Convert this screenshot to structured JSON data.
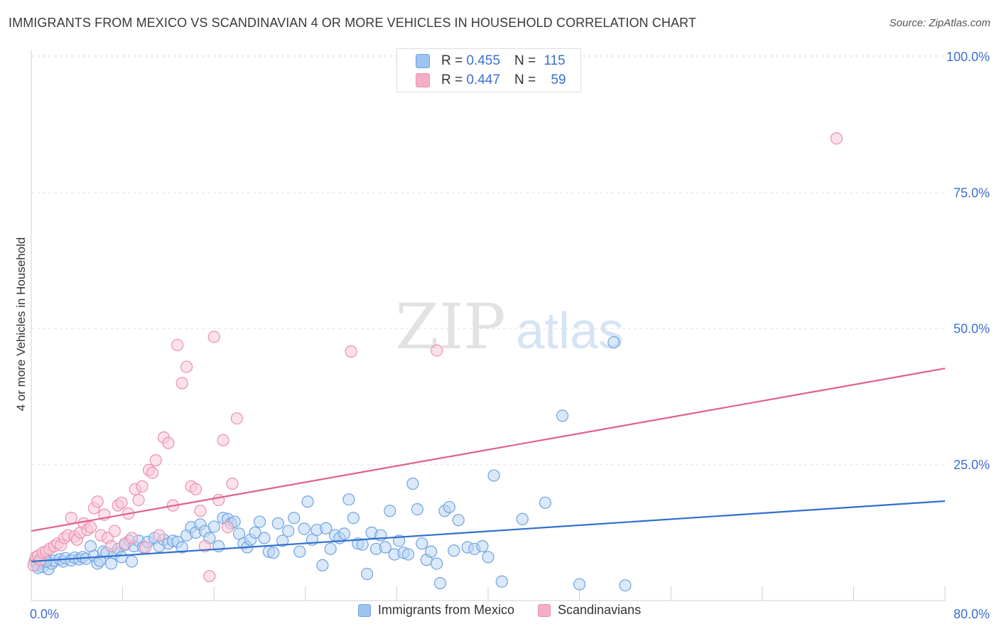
{
  "title": "IMMIGRANTS FROM MEXICO VS SCANDINAVIAN 4 OR MORE VEHICLES IN HOUSEHOLD CORRELATION CHART",
  "source": {
    "label": "Source:",
    "value": "ZipAtlas.com"
  },
  "watermark": {
    "zip": "ZIP",
    "atlas": "atlas"
  },
  "stats": [
    {
      "r_label": "R =",
      "r_value": "0.455",
      "n_label": "N =",
      "n_value": "115",
      "color": "#9dc3ee"
    },
    {
      "r_label": "R =",
      "r_value": "0.447",
      "n_label": "N =",
      "n_value": "59",
      "color": "#f4afc6"
    }
  ],
  "legend": [
    {
      "label": "Immigrants from Mexico",
      "color": "#9dc3ee"
    },
    {
      "label": "Scandinavians",
      "color": "#f4afc6"
    }
  ],
  "chart_data": {
    "type": "scatter",
    "ylabel": "4 or more Vehicles in Household",
    "xlim": [
      0,
      80
    ],
    "ylim": [
      0,
      105
    ],
    "x_tick_labels": [
      {
        "value": 0,
        "label": "0.0%"
      },
      {
        "value": 80,
        "label": "80.0%"
      }
    ],
    "y_tick_labels": [
      {
        "value": 25,
        "label": "25.0%"
      },
      {
        "value": 50,
        "label": "50.0%"
      },
      {
        "value": 75,
        "label": "75.0%"
      },
      {
        "value": 100,
        "label": "100.0%"
      }
    ],
    "grid": true,
    "legend_position": "bottom",
    "series": [
      {
        "name": "Immigrants from Mexico",
        "color": "#6fa3e3",
        "fill": "#bcd6f3",
        "trend": {
          "x": [
            0,
            80
          ],
          "y": [
            7.2,
            18.3
          ],
          "color": "#2f6fd0"
        },
        "points": [
          [
            0.3,
            7.2
          ],
          [
            0.5,
            6.5
          ],
          [
            0.8,
            7.0
          ],
          [
            1.0,
            6.2
          ],
          [
            1.2,
            7.5
          ],
          [
            1.5,
            5.8
          ],
          [
            1.8,
            6.8
          ],
          [
            2.0,
            7.3
          ],
          [
            2.5,
            7.6
          ],
          [
            2.8,
            7.2
          ],
          [
            3.0,
            7.8
          ],
          [
            3.5,
            7.4
          ],
          [
            3.8,
            7.9
          ],
          [
            4.2,
            7.6
          ],
          [
            4.5,
            8.0
          ],
          [
            4.8,
            7.7
          ],
          [
            5.2,
            10.0
          ],
          [
            5.5,
            8.2
          ],
          [
            5.8,
            6.8
          ],
          [
            6.0,
            7.3
          ],
          [
            6.3,
            9.0
          ],
          [
            6.6,
            8.8
          ],
          [
            7.0,
            6.8
          ],
          [
            7.3,
            8.7
          ],
          [
            7.6,
            9.5
          ],
          [
            7.9,
            8.0
          ],
          [
            8.2,
            10.2
          ],
          [
            8.6,
            11.0
          ],
          [
            8.8,
            7.2
          ],
          [
            9.0,
            10.0
          ],
          [
            9.4,
            11.0
          ],
          [
            9.8,
            9.8
          ],
          [
            10.2,
            10.8
          ],
          [
            10.8,
            11.5
          ],
          [
            11.2,
            10.0
          ],
          [
            11.6,
            11.2
          ],
          [
            12.0,
            10.5
          ],
          [
            12.4,
            11.0
          ],
          [
            12.8,
            10.8
          ],
          [
            13.2,
            9.8
          ],
          [
            13.6,
            12.0
          ],
          [
            14.0,
            13.5
          ],
          [
            14.4,
            12.5
          ],
          [
            14.8,
            14.0
          ],
          [
            15.2,
            12.8
          ],
          [
            15.6,
            11.5
          ],
          [
            16.0,
            13.6
          ],
          [
            16.4,
            10.0
          ],
          [
            16.8,
            15.2
          ],
          [
            17.2,
            15.0
          ],
          [
            17.5,
            14.2
          ],
          [
            17.8,
            14.5
          ],
          [
            18.2,
            12.3
          ],
          [
            18.6,
            10.5
          ],
          [
            18.9,
            9.8
          ],
          [
            19.2,
            11.2
          ],
          [
            19.6,
            12.5
          ],
          [
            20.0,
            14.5
          ],
          [
            20.4,
            11.5
          ],
          [
            20.8,
            9.0
          ],
          [
            21.2,
            8.8
          ],
          [
            21.6,
            14.2
          ],
          [
            22.0,
            11.0
          ],
          [
            22.5,
            12.8
          ],
          [
            23.0,
            15.2
          ],
          [
            23.5,
            9.0
          ],
          [
            23.9,
            13.2
          ],
          [
            24.2,
            18.2
          ],
          [
            24.6,
            11.2
          ],
          [
            25.0,
            13.0
          ],
          [
            25.5,
            6.5
          ],
          [
            25.8,
            13.3
          ],
          [
            26.2,
            9.5
          ],
          [
            26.6,
            12.0
          ],
          [
            27.0,
            11.5
          ],
          [
            27.4,
            12.3
          ],
          [
            27.8,
            18.6
          ],
          [
            28.2,
            15.2
          ],
          [
            28.6,
            10.5
          ],
          [
            29.0,
            10.3
          ],
          [
            29.4,
            4.9
          ],
          [
            29.8,
            12.5
          ],
          [
            30.2,
            9.5
          ],
          [
            30.6,
            12.0
          ],
          [
            31.0,
            9.8
          ],
          [
            31.4,
            16.5
          ],
          [
            31.8,
            8.5
          ],
          [
            32.2,
            11.0
          ],
          [
            32.6,
            8.8
          ],
          [
            33.0,
            8.5
          ],
          [
            33.4,
            21.5
          ],
          [
            33.8,
            16.8
          ],
          [
            34.2,
            10.5
          ],
          [
            34.6,
            7.5
          ],
          [
            35.0,
            9.0
          ],
          [
            35.5,
            6.8
          ],
          [
            35.8,
            3.2
          ],
          [
            36.2,
            16.5
          ],
          [
            36.6,
            17.2
          ],
          [
            37.0,
            9.2
          ],
          [
            37.4,
            14.8
          ],
          [
            38.2,
            9.8
          ],
          [
            38.8,
            9.5
          ],
          [
            39.5,
            10.0
          ],
          [
            40.0,
            8.0
          ],
          [
            40.5,
            23.0
          ],
          [
            41.2,
            3.5
          ],
          [
            43.0,
            15.0
          ],
          [
            45.0,
            18.0
          ],
          [
            46.5,
            34.0
          ],
          [
            48.0,
            3.0
          ],
          [
            51.0,
            47.5
          ],
          [
            52.0,
            2.8
          ],
          [
            0.6,
            6.0
          ],
          [
            1.3,
            7.2
          ]
        ]
      },
      {
        "name": "Scandinavians",
        "color": "#ec8fb0",
        "fill": "#f7c9d8",
        "trend": {
          "x": [
            0,
            80
          ],
          "y": [
            12.8,
            42.7
          ],
          "color": "#e0608e"
        },
        "points": [
          [
            0.2,
            6.5
          ],
          [
            0.4,
            8.0
          ],
          [
            0.6,
            8.2
          ],
          [
            0.8,
            7.5
          ],
          [
            1.0,
            8.8
          ],
          [
            1.3,
            9.0
          ],
          [
            1.6,
            9.5
          ],
          [
            2.0,
            10.0
          ],
          [
            2.3,
            10.5
          ],
          [
            2.6,
            10.2
          ],
          [
            2.9,
            11.5
          ],
          [
            3.2,
            12.0
          ],
          [
            3.5,
            15.2
          ],
          [
            3.8,
            11.8
          ],
          [
            4.0,
            11.2
          ],
          [
            4.3,
            12.5
          ],
          [
            4.6,
            14.2
          ],
          [
            4.9,
            13.0
          ],
          [
            5.2,
            13.5
          ],
          [
            5.5,
            17.0
          ],
          [
            5.8,
            18.2
          ],
          [
            6.1,
            12.0
          ],
          [
            6.4,
            15.8
          ],
          [
            6.7,
            11.5
          ],
          [
            7.0,
            10.0
          ],
          [
            7.3,
            12.8
          ],
          [
            7.6,
            17.5
          ],
          [
            7.9,
            18.0
          ],
          [
            8.2,
            10.5
          ],
          [
            8.5,
            16.0
          ],
          [
            8.8,
            11.5
          ],
          [
            9.1,
            20.5
          ],
          [
            9.4,
            18.5
          ],
          [
            9.7,
            21.0
          ],
          [
            10.0,
            9.8
          ],
          [
            10.3,
            24.0
          ],
          [
            10.6,
            23.5
          ],
          [
            10.9,
            25.8
          ],
          [
            11.2,
            12.0
          ],
          [
            11.6,
            30.0
          ],
          [
            12.0,
            29.0
          ],
          [
            12.4,
            17.5
          ],
          [
            12.8,
            47.0
          ],
          [
            13.2,
            40.0
          ],
          [
            13.6,
            43.0
          ],
          [
            14.0,
            21.0
          ],
          [
            14.4,
            20.5
          ],
          [
            14.8,
            16.5
          ],
          [
            15.2,
            10.0
          ],
          [
            15.6,
            4.5
          ],
          [
            16.0,
            48.5
          ],
          [
            16.4,
            18.5
          ],
          [
            16.8,
            29.5
          ],
          [
            17.2,
            13.5
          ],
          [
            17.6,
            21.5
          ],
          [
            18.0,
            33.5
          ],
          [
            28.0,
            45.8
          ],
          [
            35.5,
            46.0
          ],
          [
            70.5,
            85.0
          ]
        ]
      }
    ]
  }
}
